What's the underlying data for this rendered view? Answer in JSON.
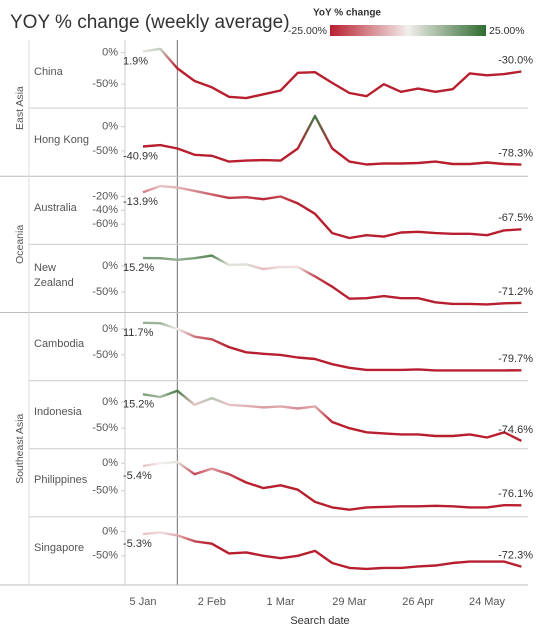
{
  "chart_data": {
    "type": "line",
    "title": "YOY % change (weekly average)",
    "x_label": "Search date",
    "categories": [
      "5 Jan",
      null,
      null,
      null,
      "2 Feb",
      null,
      null,
      null,
      "1 Mar",
      null,
      null,
      null,
      "29 Mar",
      null,
      null,
      null,
      "26 Apr",
      null,
      null,
      null,
      "24 May",
      null,
      null
    ],
    "color_legend": {
      "title": "YoY % change",
      "min": {
        "value": -25,
        "label": "-25.00%"
      },
      "max": {
        "value": 25,
        "label": "25.00%"
      },
      "colors": [
        "#b81f2e",
        "#f2eeec",
        "#2e6b30"
      ]
    },
    "groups": [
      {
        "name": "East Asia",
        "panels": [
          {
            "name": "China",
            "ylim": [
              -80,
              12
            ],
            "yticks": [
              {
                "value": 0,
                "label": "0%"
              },
              {
                "value": -50,
                "label": "-50%"
              }
            ],
            "values": [
              1.9,
              6,
              -25,
              -45,
              -55,
              -70,
              -72,
              -66,
              -60,
              -32,
              -31,
              -48,
              -64,
              -69,
              -50,
              -62,
              -57,
              -62,
              -58,
              -33,
              -36,
              -34,
              -30.0
            ],
            "value_labels": [
              "1.9%",
              null,
              null,
              null,
              null,
              null,
              null,
              null,
              null,
              null,
              null,
              null,
              null,
              null,
              null,
              null,
              null,
              null,
              null,
              null,
              null,
              null,
              "-30.0%"
            ]
          },
          {
            "name": "Hong Kong",
            "ylim": [
              -92,
              28
            ],
            "yticks": [
              {
                "value": 0,
                "label": "0%"
              },
              {
                "value": -50,
                "label": "-50%"
              }
            ],
            "values": [
              -40.9,
              -38,
              -45,
              -58,
              -60,
              -72,
              -70,
              -69,
              -70,
              -45,
              22,
              -45,
              -72,
              -78,
              -76,
              -76,
              -75,
              -72,
              -77,
              -77,
              -74,
              -77,
              -78.3
            ],
            "value_labels": [
              "-40.9%",
              null,
              null,
              null,
              null,
              null,
              null,
              null,
              null,
              null,
              null,
              null,
              null,
              null,
              null,
              null,
              null,
              null,
              null,
              null,
              null,
              null,
              "-78.3%"
            ]
          }
        ]
      },
      {
        "name": "Oceania",
        "panels": [
          {
            "name": "Australia",
            "ylim": [
              -82,
              2
            ],
            "yticks": [
              {
                "value": -20,
                "label": "-20%"
              },
              {
                "value": -40,
                "label": "-40%"
              },
              {
                "value": -60,
                "label": "-60%"
              }
            ],
            "values": [
              -13.9,
              -5,
              -7,
              -12,
              -17,
              -22,
              -21,
              -24,
              -20,
              -30,
              -45,
              -73,
              -80,
              -76,
              -78,
              -72,
              -71,
              -73,
              -74,
              -74,
              -76,
              -69,
              -67.5
            ],
            "value_labels": [
              "-13.9%",
              null,
              null,
              null,
              null,
              null,
              null,
              null,
              null,
              null,
              null,
              null,
              null,
              null,
              null,
              null,
              null,
              null,
              null,
              null,
              null,
              null,
              "-67.5%"
            ]
          },
          {
            "name": "New\nZealand",
            "ylim": [
              -80,
              32
            ],
            "yticks": [
              {
                "value": 0,
                "label": "0%"
              },
              {
                "value": -50,
                "label": "-50%"
              }
            ],
            "values": [
              15.2,
              15,
              12,
              15,
              20,
              2,
              3,
              -6,
              -2,
              -2,
              -20,
              -40,
              -63,
              -62,
              -58,
              -62,
              -62,
              -70,
              -73,
              -73,
              -74,
              -72,
              -71.2
            ],
            "value_labels": [
              "15.2%",
              null,
              null,
              null,
              null,
              null,
              null,
              null,
              null,
              null,
              null,
              null,
              null,
              null,
              null,
              null,
              null,
              null,
              null,
              null,
              null,
              null,
              "-71.2%"
            ]
          }
        ]
      },
      {
        "name": "Southeast Asia",
        "panels": [
          {
            "name": "Cambodia",
            "ylim": [
              -90,
              22
            ],
            "yticks": [
              {
                "value": 0,
                "label": "0%"
              },
              {
                "value": -50,
                "label": "-50%"
              }
            ],
            "values": [
              11.7,
              11,
              0,
              -15,
              -20,
              -35,
              -45,
              -48,
              -50,
              -55,
              -58,
              -68,
              -75,
              -79,
              -79,
              -79,
              -78,
              -80,
              -80,
              -80,
              -80,
              -80,
              -79.7
            ],
            "value_labels": [
              "11.7%",
              null,
              null,
              null,
              null,
              null,
              null,
              null,
              null,
              null,
              null,
              null,
              null,
              null,
              null,
              null,
              null,
              null,
              null,
              null,
              null,
              null,
              "-79.7%"
            ]
          },
          {
            "name": "Indonesia",
            "ylim": [
              -80,
              32
            ],
            "yticks": [
              {
                "value": 0,
                "label": "0%"
              },
              {
                "value": -50,
                "label": "-50%"
              }
            ],
            "values": [
              15.2,
              10,
              22,
              -5,
              8,
              -5,
              -7,
              -10,
              -8,
              -12,
              -8,
              -38,
              -50,
              -58,
              -60,
              -62,
              -62,
              -65,
              -65,
              -62,
              -68,
              -58,
              -74.6
            ],
            "value_labels": [
              "15.2%",
              null,
              null,
              null,
              null,
              null,
              null,
              null,
              null,
              null,
              null,
              null,
              null,
              null,
              null,
              null,
              null,
              null,
              null,
              null,
              null,
              null,
              "-74.6%"
            ]
          },
          {
            "name": "Philippines",
            "ylim": [
              -88,
              17
            ],
            "yticks": [
              {
                "value": 0,
                "label": "0%"
              },
              {
                "value": -50,
                "label": "-50%"
              }
            ],
            "values": [
              -5.4,
              0,
              2,
              -20,
              -10,
              -20,
              -35,
              -45,
              -40,
              -48,
              -70,
              -80,
              -84,
              -80,
              -79,
              -78,
              -78,
              -77,
              -78,
              -80,
              -80,
              -76,
              -76.1
            ],
            "value_labels": [
              "-5.4%",
              null,
              null,
              null,
              null,
              null,
              null,
              null,
              null,
              null,
              null,
              null,
              null,
              null,
              null,
              null,
              null,
              null,
              null,
              null,
              null,
              null,
              "-76.1%"
            ]
          },
          {
            "name": "Singapore",
            "ylim": [
              -100,
              20
            ],
            "yticks": [
              {
                "value": 0,
                "label": "0%"
              },
              {
                "value": -50,
                "label": "-50%"
              }
            ],
            "values": [
              -5.3,
              -2,
              -8,
              -20,
              -25,
              -45,
              -43,
              -50,
              -55,
              -50,
              -40,
              -65,
              -75,
              -77,
              -75,
              -75,
              -72,
              -70,
              -65,
              -62,
              -62,
              -62,
              -72.3
            ],
            "value_labels": [
              "-5.3%",
              null,
              null,
              null,
              null,
              null,
              null,
              null,
              null,
              null,
              null,
              null,
              null,
              null,
              null,
              null,
              null,
              null,
              null,
              null,
              null,
              null,
              "-72.3%"
            ]
          }
        ]
      }
    ]
  }
}
